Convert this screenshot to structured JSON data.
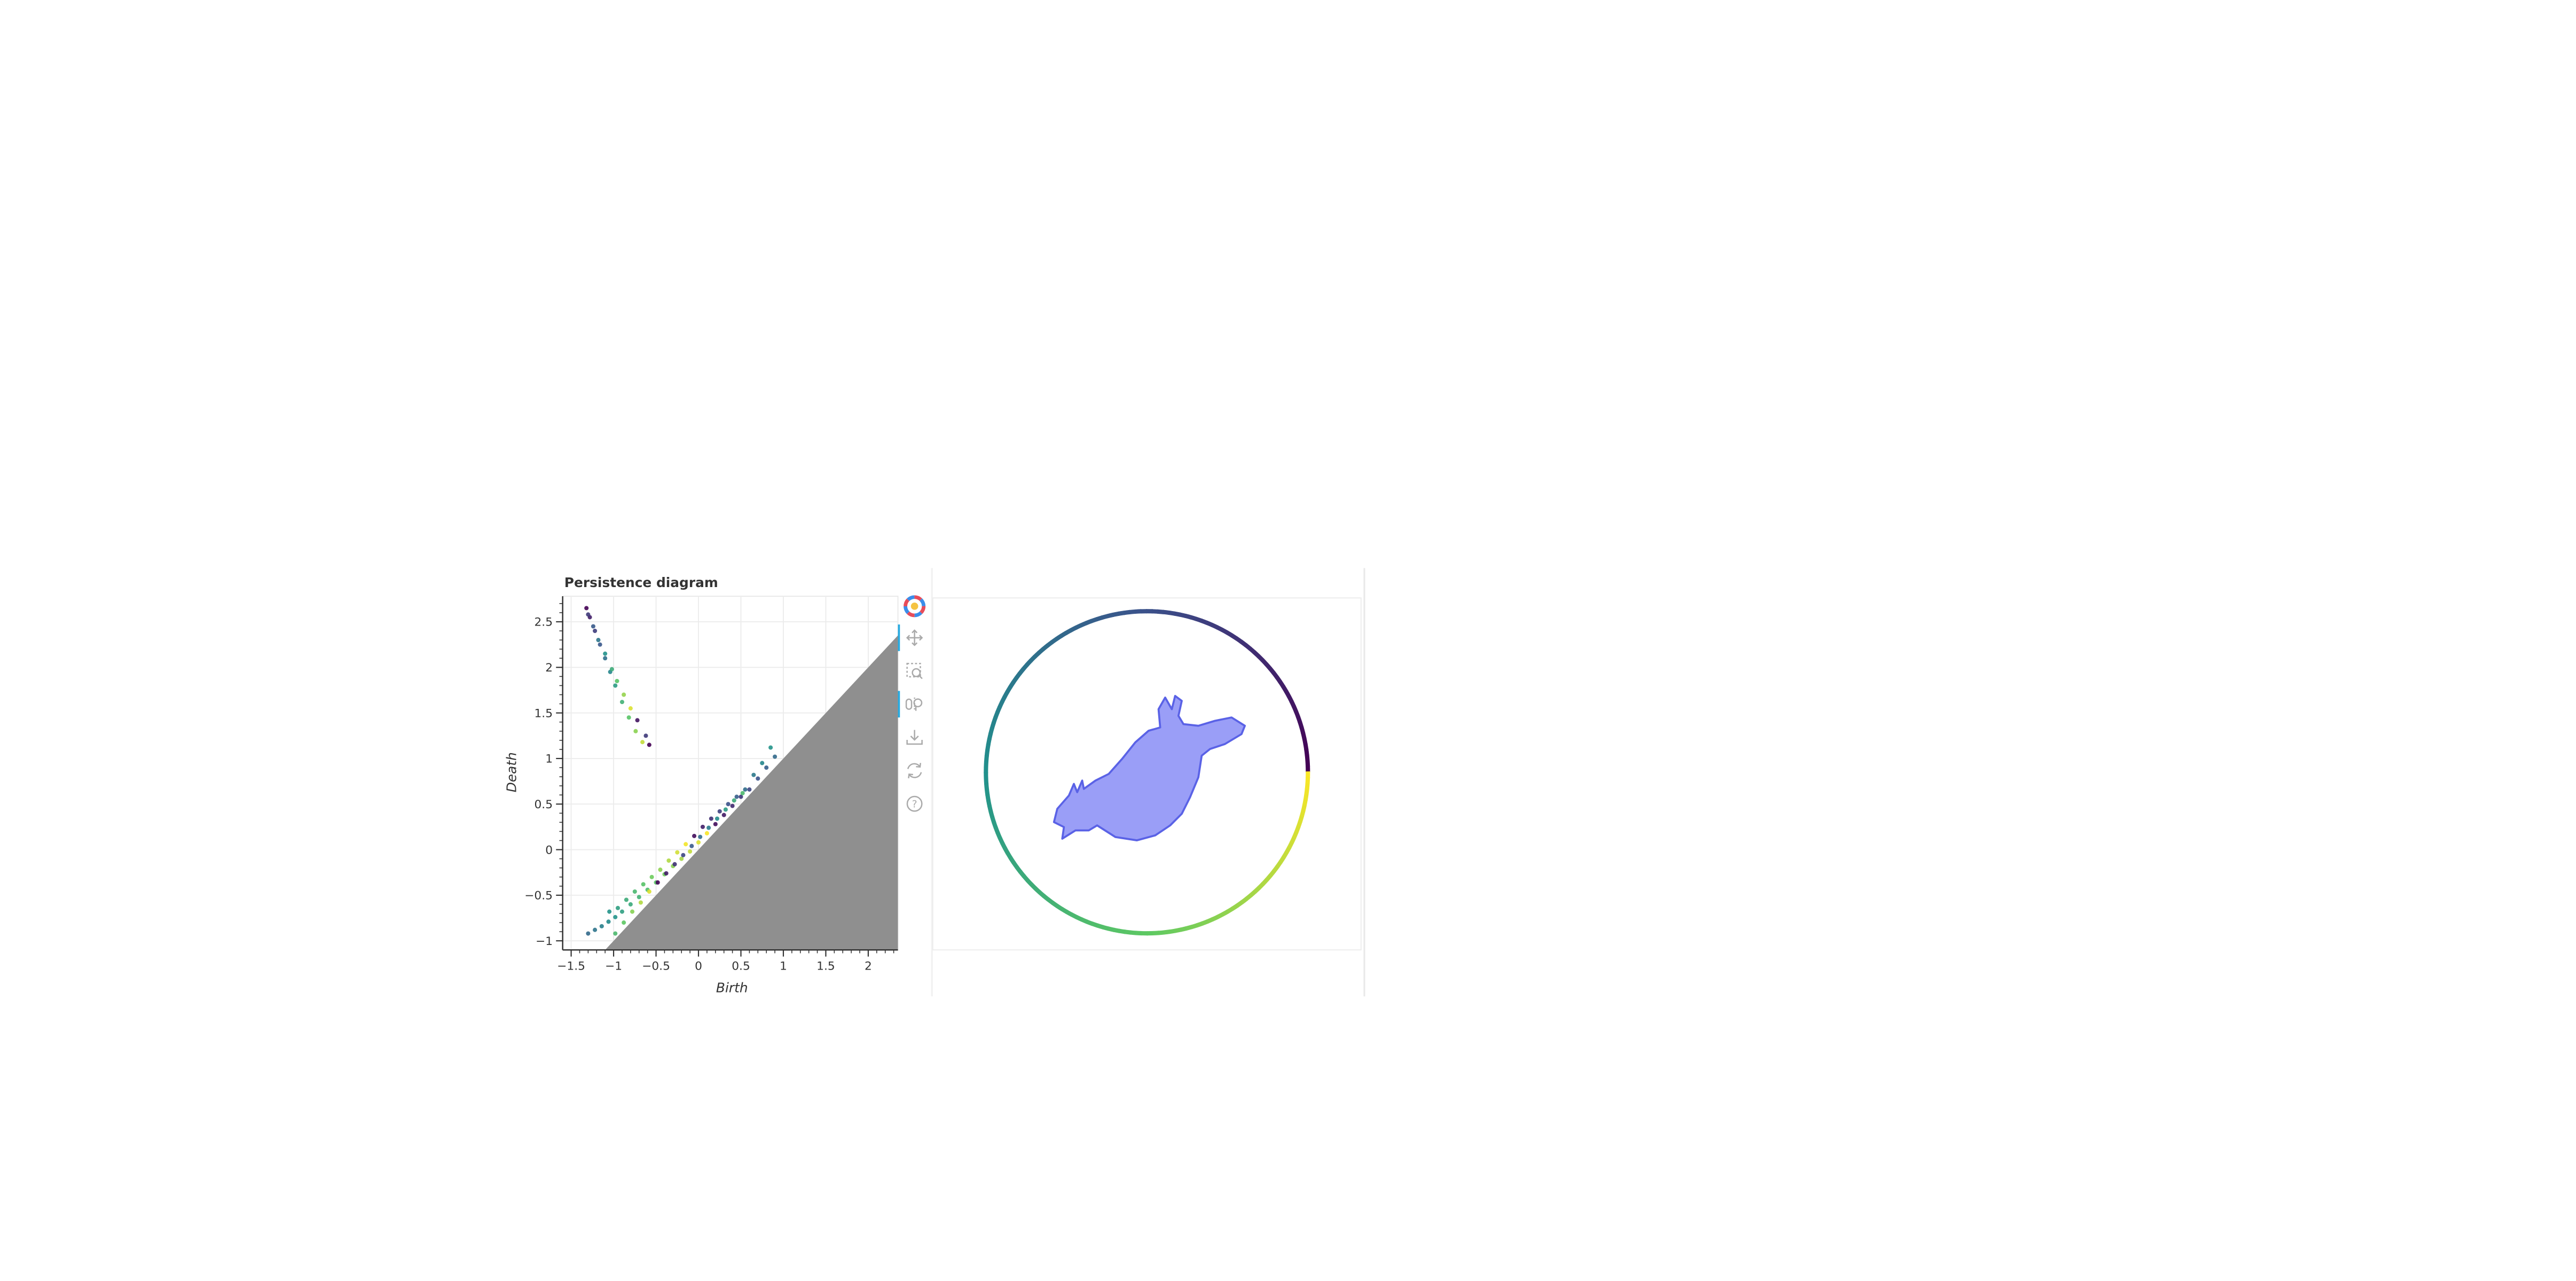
{
  "chart_data": {
    "type": "scatter",
    "title": "Persistence diagram",
    "xlabel": "Birth",
    "ylabel": "Death",
    "xlim": [
      -1.6,
      2.35
    ],
    "ylim": [
      -1.1,
      2.78
    ],
    "x_ticks": [
      -1.5,
      -1,
      -0.5,
      0,
      0.5,
      1,
      1.5,
      2
    ],
    "x_tick_labels": [
      "−1.5",
      "−1",
      "−0.5",
      "0",
      "0.5",
      "1",
      "1.5",
      "2"
    ],
    "y_ticks": [
      -1,
      -0.5,
      0,
      0.5,
      1,
      1.5,
      2,
      2.5
    ],
    "y_tick_labels": [
      "−1",
      "−0.5",
      "0",
      "0.5",
      "1",
      "1.5",
      "2",
      "2.5"
    ],
    "grid": true,
    "diagonal_region": "shaded below y = x",
    "colormap": "viridis",
    "shape_fill": "#9a9ef7",
    "shape_stroke": "#5a62e6",
    "point_groups": [
      {
        "points": [
          [
            -1.32,
            2.65
          ],
          [
            -1.28,
            2.55
          ],
          [
            -1.22,
            2.4
          ],
          [
            -1.16,
            2.25
          ],
          [
            -1.1,
            2.1
          ],
          [
            -1.04,
            1.95
          ],
          [
            -0.98,
            1.8
          ],
          [
            -0.9,
            1.62
          ],
          [
            -0.82,
            1.45
          ],
          [
            -0.74,
            1.3
          ],
          [
            -0.66,
            1.18
          ],
          [
            -0.58,
            1.15
          ]
        ]
      },
      {
        "points": [
          [
            -1.3,
            2.58
          ],
          [
            -1.24,
            2.45
          ],
          [
            -1.18,
            2.3
          ],
          [
            -1.1,
            2.15
          ],
          [
            -1.02,
            1.98
          ],
          [
            -0.96,
            1.85
          ],
          [
            -0.88,
            1.7
          ],
          [
            -0.8,
            1.55
          ],
          [
            -0.72,
            1.42
          ],
          [
            -0.62,
            1.25
          ]
        ]
      },
      {
        "points": [
          [
            -1.3,
            -0.92
          ],
          [
            -1.22,
            -0.88
          ],
          [
            -1.14,
            -0.84
          ],
          [
            -1.06,
            -0.79
          ],
          [
            -0.98,
            -0.74
          ],
          [
            -0.9,
            -0.68
          ],
          [
            -0.8,
            -0.6
          ],
          [
            -0.7,
            -0.52
          ],
          [
            -0.6,
            -0.44
          ],
          [
            -0.5,
            -0.36
          ],
          [
            -0.4,
            -0.27
          ],
          [
            -0.3,
            -0.18
          ],
          [
            -0.2,
            -0.1
          ],
          [
            -0.1,
            -0.02
          ],
          [
            0,
            0.08
          ],
          [
            0.1,
            0.18
          ],
          [
            0.2,
            0.28
          ],
          [
            0.3,
            0.38
          ],
          [
            0.4,
            0.48
          ],
          [
            0.5,
            0.58
          ],
          [
            0.6,
            0.66
          ],
          [
            0.7,
            0.78
          ],
          [
            0.8,
            0.9
          ],
          [
            0.9,
            1.02
          ]
        ]
      },
      {
        "points": [
          [
            -1.05,
            -0.68
          ],
          [
            -0.95,
            -0.64
          ],
          [
            -0.85,
            -0.55
          ],
          [
            -0.75,
            -0.46
          ],
          [
            -0.65,
            -0.38
          ],
          [
            -0.55,
            -0.3
          ],
          [
            -0.45,
            -0.22
          ],
          [
            -0.35,
            -0.12
          ],
          [
            -0.25,
            -0.03
          ],
          [
            -0.15,
            0.06
          ],
          [
            -0.05,
            0.15
          ],
          [
            0.05,
            0.25
          ],
          [
            0.15,
            0.34
          ],
          [
            0.25,
            0.42
          ],
          [
            0.35,
            0.5
          ],
          [
            0.45,
            0.58
          ],
          [
            0.55,
            0.66
          ],
          [
            0.65,
            0.82
          ],
          [
            0.75,
            0.95
          ],
          [
            0.85,
            1.12
          ]
        ]
      },
      {
        "points": [
          [
            -0.98,
            -0.92
          ],
          [
            -0.88,
            -0.8
          ],
          [
            -0.78,
            -0.68
          ],
          [
            -0.68,
            -0.58
          ],
          [
            -0.58,
            -0.46
          ],
          [
            -0.48,
            -0.36
          ],
          [
            -0.38,
            -0.26
          ],
          [
            -0.28,
            -0.16
          ],
          [
            -0.18,
            -0.06
          ],
          [
            -0.08,
            0.04
          ],
          [
            0.02,
            0.14
          ],
          [
            0.12,
            0.24
          ],
          [
            0.22,
            0.34
          ],
          [
            0.32,
            0.44
          ],
          [
            0.42,
            0.54
          ],
          [
            0.52,
            0.62
          ]
        ]
      }
    ]
  },
  "toolbar": {
    "items": [
      {
        "name": "bokeh-logo",
        "icon": "logo-icon"
      },
      {
        "name": "pan-tool",
        "icon": "pan-icon"
      },
      {
        "name": "box-zoom-tool",
        "icon": "box-zoom-icon"
      },
      {
        "name": "wheel-zoom-tool",
        "icon": "wheel-zoom-icon"
      },
      {
        "name": "save-tool",
        "icon": "save-icon"
      },
      {
        "name": "reset-tool",
        "icon": "reset-icon"
      },
      {
        "name": "help-tool",
        "icon": "help-icon"
      }
    ]
  }
}
